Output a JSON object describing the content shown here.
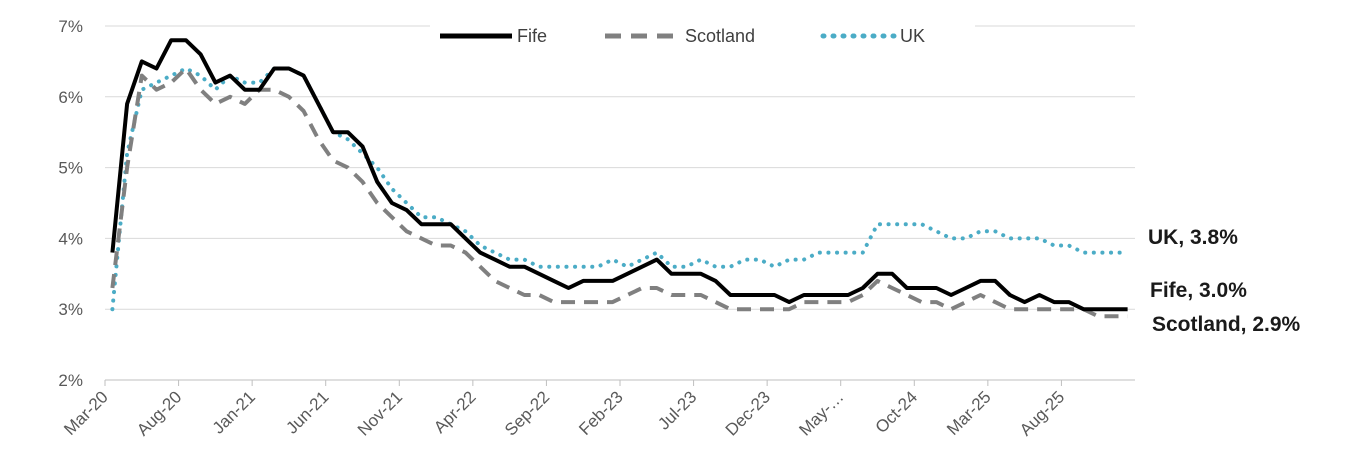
{
  "chart_data": {
    "type": "line",
    "title": "",
    "xlabel": "",
    "ylabel": "",
    "ylim": [
      2,
      7
    ],
    "y_ticks": [
      "2%",
      "3%",
      "4%",
      "5%",
      "6%",
      "7%"
    ],
    "x_ticks": [
      "Mar-20",
      "Aug-20",
      "Jan-21",
      "Jun-21",
      "Nov-21",
      "Apr-22",
      "Sep-22",
      "Feb-23",
      "Jul-23",
      "Dec-23",
      "May-…",
      "Oct-24",
      "Mar-25",
      "Aug-25"
    ],
    "x_start": "Mar-20",
    "x_end": "Jan-26",
    "grid": true,
    "legend_position": "top",
    "series": [
      {
        "name": "Fife",
        "color": "#000000",
        "style": "solid",
        "values": [
          3.8,
          5.9,
          6.5,
          6.4,
          6.8,
          6.8,
          6.6,
          6.2,
          6.3,
          6.1,
          6.1,
          6.4,
          6.4,
          6.3,
          5.9,
          5.5,
          5.5,
          5.3,
          4.8,
          4.5,
          4.4,
          4.2,
          4.2,
          4.2,
          4.0,
          3.8,
          3.7,
          3.6,
          3.6,
          3.5,
          3.4,
          3.3,
          3.4,
          3.4,
          3.4,
          3.5,
          3.6,
          3.7,
          3.5,
          3.5,
          3.5,
          3.4,
          3.2,
          3.2,
          3.2,
          3.2,
          3.1,
          3.2,
          3.2,
          3.2,
          3.2,
          3.3,
          3.5,
          3.5,
          3.3,
          3.3,
          3.3,
          3.2,
          3.3,
          3.4,
          3.4,
          3.2,
          3.1,
          3.2,
          3.1,
          3.1,
          3.0,
          3.0,
          3.0,
          3.0
        ]
      },
      {
        "name": "Scotland",
        "color": "#808080",
        "style": "dashed",
        "values": [
          3.3,
          5.0,
          6.3,
          6.1,
          6.2,
          6.4,
          6.1,
          5.9,
          6.0,
          5.9,
          6.1,
          6.1,
          6.0,
          5.8,
          5.4,
          5.1,
          5.0,
          4.8,
          4.5,
          4.3,
          4.1,
          4.0,
          3.9,
          3.9,
          3.8,
          3.6,
          3.4,
          3.3,
          3.2,
          3.2,
          3.1,
          3.1,
          3.1,
          3.1,
          3.1,
          3.2,
          3.3,
          3.3,
          3.2,
          3.2,
          3.2,
          3.1,
          3.0,
          3.0,
          3.0,
          3.0,
          3.0,
          3.1,
          3.1,
          3.1,
          3.1,
          3.2,
          3.4,
          3.3,
          3.2,
          3.1,
          3.1,
          3.0,
          3.1,
          3.2,
          3.1,
          3.0,
          3.0,
          3.0,
          3.0,
          3.0,
          3.0,
          2.9,
          2.9,
          2.9
        ]
      },
      {
        "name": "UK",
        "color": "#4BACC6",
        "style": "dotted",
        "values": [
          3.0,
          5.2,
          6.1,
          6.2,
          6.3,
          6.4,
          6.3,
          6.1,
          6.3,
          6.2,
          6.2,
          6.4,
          6.4,
          6.3,
          5.9,
          5.5,
          5.4,
          5.2,
          5.0,
          4.7,
          4.5,
          4.3,
          4.3,
          4.2,
          4.1,
          3.9,
          3.8,
          3.7,
          3.7,
          3.6,
          3.6,
          3.6,
          3.6,
          3.6,
          3.7,
          3.6,
          3.7,
          3.8,
          3.6,
          3.6,
          3.7,
          3.6,
          3.6,
          3.7,
          3.7,
          3.6,
          3.7,
          3.7,
          3.8,
          3.8,
          3.8,
          3.8,
          4.2,
          4.2,
          4.2,
          4.2,
          4.1,
          4.0,
          4.0,
          4.1,
          4.1,
          4.0,
          4.0,
          4.0,
          3.9,
          3.9,
          3.8,
          3.8,
          3.8,
          3.8
        ]
      }
    ],
    "end_labels": {
      "uk": "UK, 3.8%",
      "fife": "Fife, 3.0%",
      "scotland": "Scotland, 2.9%"
    }
  }
}
